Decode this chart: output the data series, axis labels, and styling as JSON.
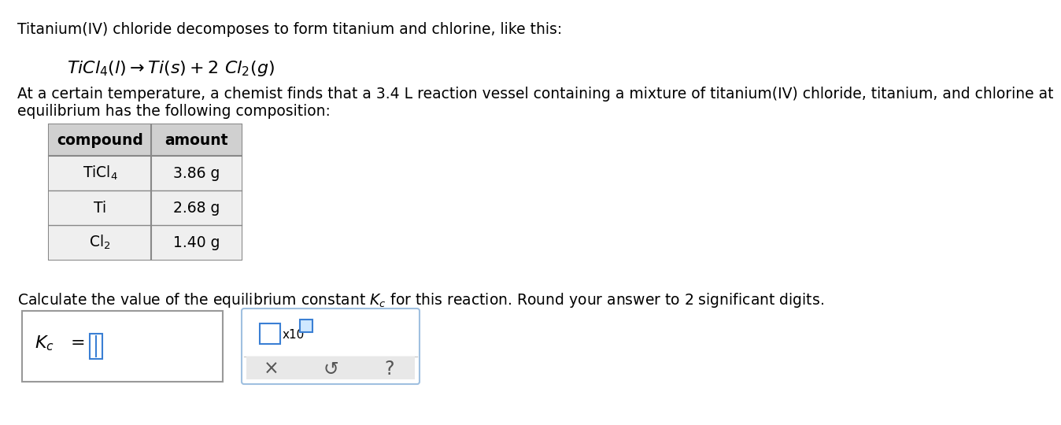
{
  "title_line": "Titanium(IV) chloride decomposes to form titanium and chlorine, like this:",
  "line1": "At a certain temperature, a chemist finds that a 3.4 L reaction vessel containing a mixture of titanium(IV) chloride, titanium, and chlorine at",
  "line2": "equilibrium has the following composition:",
  "table_headers": [
    "compound",
    "amount"
  ],
  "table_rows": [
    [
      "TiCl$_4$",
      "3.86 g"
    ],
    [
      "Ti",
      "2.68 g"
    ],
    [
      "Cl$_2$",
      "1.40 g"
    ]
  ],
  "calc_line": "Calculate the value of the equilibrium constant $K_c$ for this reaction. Round your answer to 2 significant digits.",
  "bg_color": "#ffffff",
  "text_color": "#000000",
  "table_header_bg": "#d0d0d0",
  "table_row_bg": "#efefef",
  "table_border_color": "#888888",
  "input_box_color": "#3a7fd4",
  "box_border_color": "#999999",
  "right_box_border": "#a0c0e0",
  "bottom_panel_bg": "#e8e8e8"
}
